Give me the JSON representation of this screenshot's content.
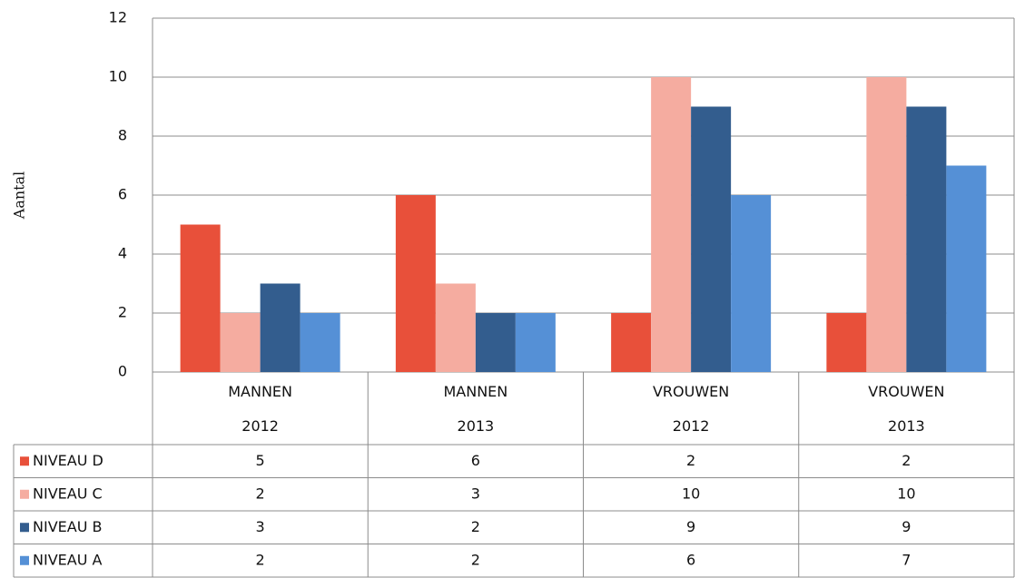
{
  "chart_data": {
    "type": "bar",
    "y_label": "Aantal",
    "categories": [
      "MANNEN\n2012",
      "MANNEN\n2013",
      "VROUWEN\n2012",
      "VROUWEN\n2013"
    ],
    "series": [
      {
        "name": "NIVEAU D",
        "color": "#e8503a",
        "values": [
          5,
          6,
          2,
          2
        ]
      },
      {
        "name": "NIVEAU C",
        "color": "#f5aca0",
        "values": [
          2,
          3,
          10,
          10
        ]
      },
      {
        "name": "NIVEAU B",
        "color": "#335d8e",
        "values": [
          3,
          2,
          9,
          9
        ]
      },
      {
        "name": "NIVEAU A",
        "color": "#5590d6",
        "values": [
          2,
          2,
          6,
          7
        ]
      }
    ],
    "ylim": [
      0,
      12
    ],
    "yticks": [
      0,
      2,
      4,
      6,
      8,
      10,
      12
    ],
    "grid": true,
    "data_table": true
  }
}
